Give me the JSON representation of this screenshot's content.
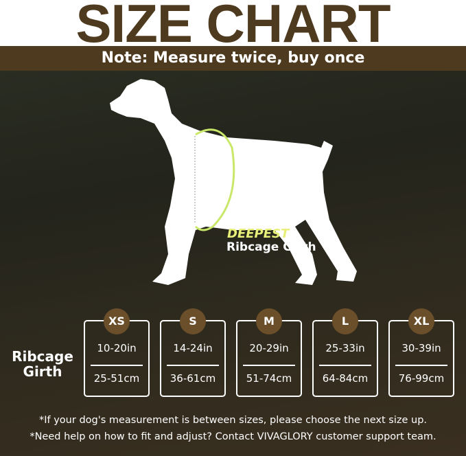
{
  "header": {
    "title": "SIZE CHART",
    "note": "Note: Measure twice, buy once"
  },
  "diagram": {
    "highlight": "DEEPEST",
    "label": "Ribcage Girth",
    "accent": "#e8f07a"
  },
  "table": {
    "row_label": "Ribcage Girth",
    "sizes": [
      {
        "size": "XS",
        "in": "10-20in",
        "cm": "25-51cm"
      },
      {
        "size": "S",
        "in": "14-24in",
        "cm": "36-61cm"
      },
      {
        "size": "M",
        "in": "20-29in",
        "cm": "51-74cm"
      },
      {
        "size": "L",
        "in": "25-33in",
        "cm": "64-84cm"
      },
      {
        "size": "XL",
        "in": "30-39in",
        "cm": "76-99cm"
      }
    ]
  },
  "notes": [
    "*If your dog's measurement is between sizes, please choose the next size up.",
    "*Need help on how to fit and adjust? Contact VIVAGLORY customer support team."
  ],
  "colors": {
    "brand": "#4e3a1e",
    "badge": "#6b4f2a"
  }
}
